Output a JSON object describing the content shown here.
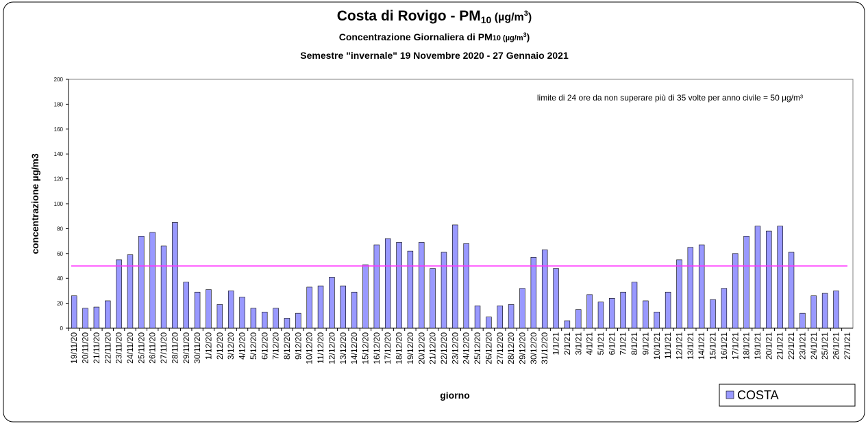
{
  "chart_data": {
    "type": "bar",
    "title": [
      "Costa di Rovigo - PM",
      "10",
      " (µg/m",
      "3",
      ")"
    ],
    "subtitle": [
      "Concentrazione Giornaliera di PM",
      "10 (µg/m",
      "3",
      ")"
    ],
    "subtitle2": "Semestre \"invernale\" 19 Novembre 2020 - 27 Gennaio 2021",
    "annotation": "limite di 24 ore da non superare più di 35 volte per anno civile = 50 µg/m³",
    "limit": 50,
    "limit_color": "#ff33ff",
    "xlabel": "giorno",
    "ylabel": "concentrazione µg/m3",
    "ylim": [
      0,
      200
    ],
    "yticks": [
      0,
      20,
      40,
      60,
      80,
      100,
      120,
      140,
      160,
      180,
      200
    ],
    "categories": [
      "19/11/20",
      "20/11/20",
      "21/11/20",
      "22/11/20",
      "23/11/20",
      "24/11/20",
      "25/11/20",
      "26/11/20",
      "27/11/20",
      "28/11/20",
      "29/11/20",
      "30/11/20",
      "1/12/20",
      "2/12/20",
      "3/12/20",
      "4/12/20",
      "5/12/20",
      "6/12/20",
      "7/12/20",
      "8/12/20",
      "9/12/20",
      "10/12/20",
      "11/12/20",
      "12/12/20",
      "13/12/20",
      "14/12/20",
      "15/12/20",
      "16/12/20",
      "17/12/20",
      "18/12/20",
      "19/12/20",
      "20/12/20",
      "21/12/20",
      "22/12/20",
      "23/12/20",
      "24/12/20",
      "25/12/20",
      "26/12/20",
      "27/12/20",
      "28/12/20",
      "29/12/20",
      "30/12/20",
      "31/12/20",
      "1/1/21",
      "2/1/21",
      "3/1/21",
      "4/1/21",
      "5/1/21",
      "6/1/21",
      "7/1/21",
      "8/1/21",
      "9/1/21",
      "10/1/21",
      "11/1/21",
      "12/1/21",
      "13/1/21",
      "14/1/21",
      "15/1/21",
      "16/1/21",
      "17/1/21",
      "18/1/21",
      "19/1/21",
      "20/1/21",
      "21/1/21",
      "22/1/21",
      "23/1/21",
      "24/1/21",
      "25/1/21",
      "26/1/21",
      "27/1/21"
    ],
    "series": [
      {
        "name": "COSTA",
        "color": "#9999ff",
        "values": [
          26,
          16,
          17,
          22,
          55,
          59,
          74,
          77,
          66,
          85,
          37,
          29,
          31,
          19,
          30,
          25,
          16,
          13,
          16,
          8,
          12,
          33,
          34,
          41,
          34,
          29,
          51,
          67,
          72,
          69,
          62,
          69,
          48,
          61,
          83,
          68,
          18,
          9,
          18,
          19,
          32,
          57,
          63,
          48,
          6,
          15,
          27,
          21,
          24,
          29,
          37,
          22,
          13,
          29,
          55,
          65,
          67,
          23,
          32,
          60,
          74,
          82,
          78,
          82,
          61,
          12,
          26,
          28,
          30,
          null
        ]
      }
    ]
  }
}
